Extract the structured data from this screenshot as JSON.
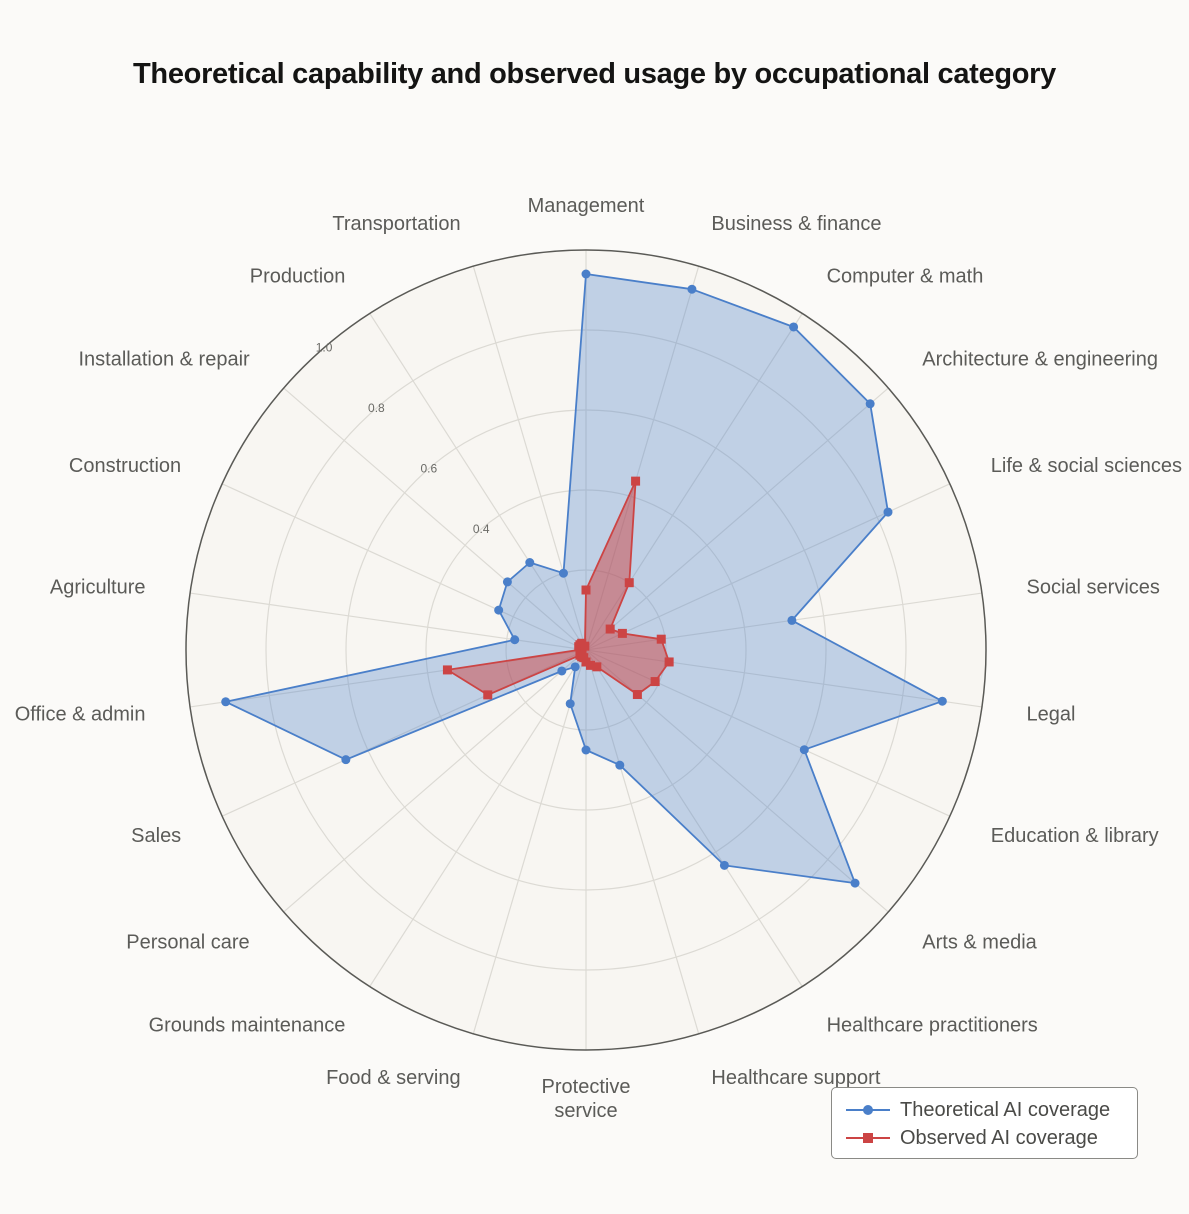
{
  "title": "Theoretical capability and observed usage by occupational category",
  "colors": {
    "theoretical": "#4a7fc9",
    "observed": "#cc4444",
    "background": "#f8f6f2",
    "grid": "#dcdad4"
  },
  "legend": {
    "theoretical": "Theoretical AI coverage",
    "observed": "Observed AI coverage"
  },
  "chart_data": {
    "type": "radar",
    "title": "Theoretical capability and observed usage by occupational category",
    "categories": [
      "Management",
      "Business & finance",
      "Computer & math",
      "Architecture & engineering",
      "Life & social sciences",
      "Social services",
      "Legal",
      "Education & library",
      "Arts & media",
      "Healthcare practitioners",
      "Healthcare support",
      "Protective service",
      "Food & serving",
      "Grounds maintenance",
      "Personal care",
      "Sales",
      "Office & admin",
      "Agriculture",
      "Construction",
      "Installation & repair",
      "Production",
      "Transportation"
    ],
    "rlim": [
      0,
      1.0
    ],
    "rticks": [
      {
        "value": 0.4,
        "label": "0.4"
      },
      {
        "value": 0.6,
        "label": "0.6"
      },
      {
        "value": 0.8,
        "label": "0.8"
      },
      {
        "value": 1.0,
        "label": "1.0"
      }
    ],
    "grid": true,
    "legend_position": "bottom-right",
    "series": [
      {
        "name": "Theoretical AI coverage",
        "marker": "circle",
        "values": [
          0.94,
          0.94,
          0.96,
          0.94,
          0.83,
          0.52,
          0.9,
          0.6,
          0.89,
          0.64,
          0.3,
          0.25,
          0.14,
          0.05,
          0.08,
          0.66,
          0.91,
          0.18,
          0.24,
          0.26,
          0.26,
          0.2
        ]
      },
      {
        "name": "Observed AI coverage",
        "marker": "square",
        "values": [
          0.15,
          0.44,
          0.2,
          0.08,
          0.1,
          0.19,
          0.21,
          0.19,
          0.17,
          0.05,
          0.04,
          0.03,
          0.02,
          0.02,
          0.02,
          0.27,
          0.35,
          0.01,
          0.02,
          0.02,
          0.02,
          0.01
        ]
      }
    ]
  }
}
